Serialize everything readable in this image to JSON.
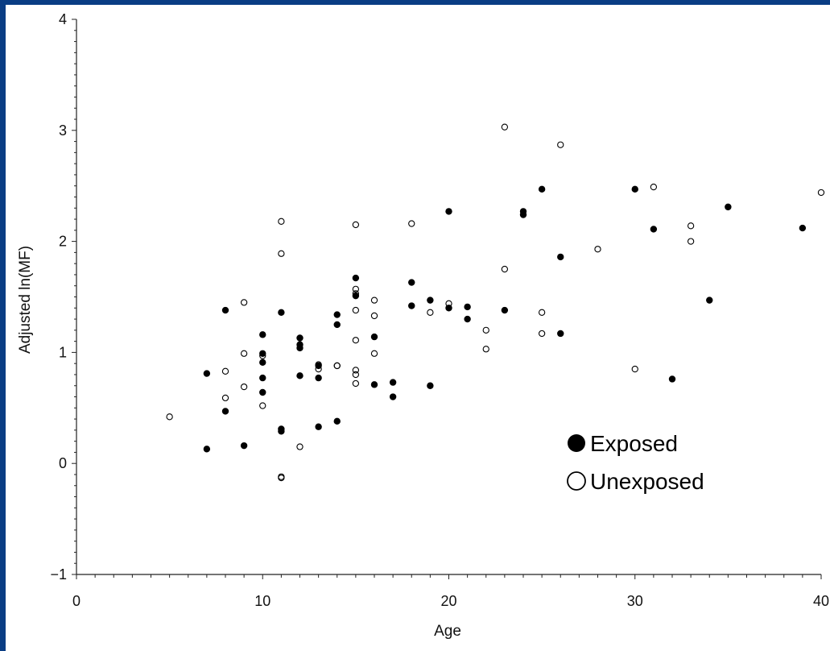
{
  "chart_data": {
    "type": "scatter",
    "xlabel": "Age",
    "ylabel": "Adjusted ln(MF)",
    "xlim": [
      0,
      40
    ],
    "ylim": [
      -1,
      4
    ],
    "x_ticks": [
      0,
      10,
      20,
      30,
      40
    ],
    "y_ticks": [
      -1,
      0,
      1,
      2,
      3,
      4
    ],
    "grid": false,
    "legend_position": "lower-right",
    "series": [
      {
        "name": "Exposed",
        "marker": "filled-circle",
        "color": "#000000",
        "points": [
          [
            7,
            0.81
          ],
          [
            7,
            0.13
          ],
          [
            8,
            1.38
          ],
          [
            8,
            0.47
          ],
          [
            9,
            0.16
          ],
          [
            10,
            1.16
          ],
          [
            10,
            0.99
          ],
          [
            10,
            0.91
          ],
          [
            10,
            0.77
          ],
          [
            10,
            0.64
          ],
          [
            11,
            1.36
          ],
          [
            11,
            0.31
          ],
          [
            11,
            0.29
          ],
          [
            12,
            1.13
          ],
          [
            12,
            1.07
          ],
          [
            12,
            1.04
          ],
          [
            12,
            0.79
          ],
          [
            13,
            0.88
          ],
          [
            13,
            0.77
          ],
          [
            13,
            0.33
          ],
          [
            14,
            1.34
          ],
          [
            14,
            1.25
          ],
          [
            14,
            0.38
          ],
          [
            15,
            1.67
          ],
          [
            15,
            1.51
          ],
          [
            16,
            1.14
          ],
          [
            16,
            0.71
          ],
          [
            17,
            0.73
          ],
          [
            17,
            0.6
          ],
          [
            18,
            1.63
          ],
          [
            18,
            1.42
          ],
          [
            19,
            1.47
          ],
          [
            19,
            0.7
          ],
          [
            20,
            2.27
          ],
          [
            20,
            1.4
          ],
          [
            21,
            1.41
          ],
          [
            21,
            1.3
          ],
          [
            23,
            1.38
          ],
          [
            24,
            2.27
          ],
          [
            24,
            2.24
          ],
          [
            25,
            2.47
          ],
          [
            26,
            1.86
          ],
          [
            26,
            1.17
          ],
          [
            30,
            2.47
          ],
          [
            31,
            2.11
          ],
          [
            32,
            0.76
          ],
          [
            34,
            1.47
          ],
          [
            35,
            2.31
          ],
          [
            39,
            2.12
          ]
        ]
      },
      {
        "name": "Unexposed",
        "marker": "open-circle",
        "color": "#000000",
        "points": [
          [
            5,
            0.42
          ],
          [
            8,
            0.83
          ],
          [
            8,
            0.59
          ],
          [
            9,
            1.45
          ],
          [
            9,
            0.99
          ],
          [
            9,
            0.69
          ],
          [
            10,
            0.97
          ],
          [
            10,
            0.52
          ],
          [
            11,
            2.18
          ],
          [
            11,
            1.89
          ],
          [
            11,
            -0.12
          ],
          [
            11,
            -0.13
          ],
          [
            12,
            0.15
          ],
          [
            13,
            0.89
          ],
          [
            13,
            0.85
          ],
          [
            14,
            0.88
          ],
          [
            14,
            0.88
          ],
          [
            15,
            2.15
          ],
          [
            15,
            1.57
          ],
          [
            15,
            1.53
          ],
          [
            15,
            1.38
          ],
          [
            15,
            1.11
          ],
          [
            15,
            0.84
          ],
          [
            15,
            0.8
          ],
          [
            15,
            0.72
          ],
          [
            16,
            1.47
          ],
          [
            16,
            1.33
          ],
          [
            16,
            0.99
          ],
          [
            18,
            2.16
          ],
          [
            19,
            1.36
          ],
          [
            20,
            1.44
          ],
          [
            22,
            1.2
          ],
          [
            22,
            1.03
          ],
          [
            23,
            3.03
          ],
          [
            23,
            1.75
          ],
          [
            25,
            1.36
          ],
          [
            25,
            1.17
          ],
          [
            26,
            2.87
          ],
          [
            28,
            1.93
          ],
          [
            30,
            0.85
          ],
          [
            31,
            2.49
          ],
          [
            33,
            2.14
          ],
          [
            33,
            2.0
          ],
          [
            40,
            2.44
          ]
        ]
      }
    ]
  }
}
